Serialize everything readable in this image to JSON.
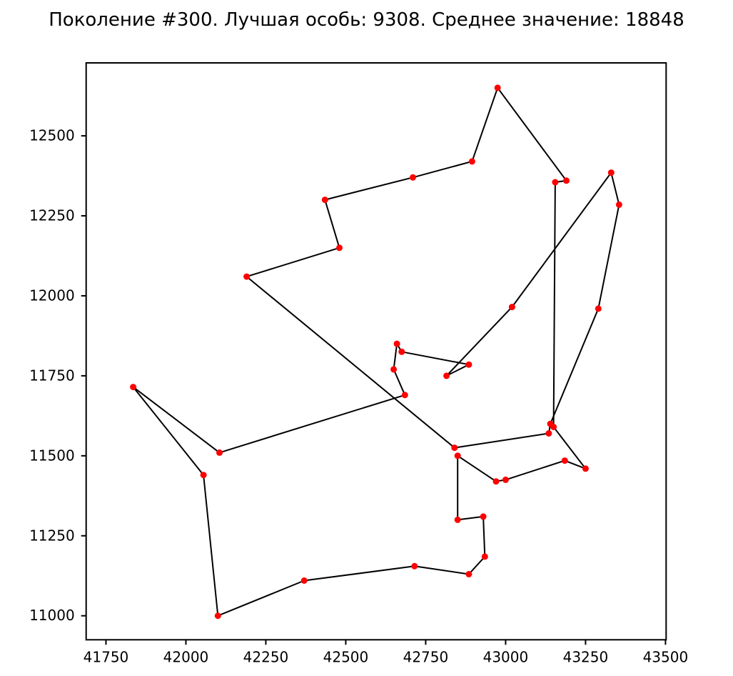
{
  "chart_data": {
    "type": "line",
    "title": "Поколение #300. Лучшая особь: 9308. Среднее значение: 18848",
    "generation": 300,
    "best_individual": 9308,
    "average_value": 18848,
    "xlabel": "",
    "ylabel": "",
    "xticks": [
      41750,
      42000,
      42250,
      42500,
      42750,
      43000,
      43250,
      43500
    ],
    "yticks": [
      11000,
      11250,
      11500,
      11750,
      12000,
      12250,
      12500
    ],
    "xlim": [
      41688,
      43502
    ],
    "ylim": [
      10925,
      12728
    ],
    "grid": false,
    "legend": "none",
    "marker_color": "#ff0000",
    "line_color": "#000000",
    "closed_tour": true,
    "points": [
      [
        42975,
        12650
      ],
      [
        43190,
        12360
      ],
      [
        43155,
        12355
      ],
      [
        43150,
        11590
      ],
      [
        43250,
        11460
      ],
      [
        43185,
        11485
      ],
      [
        43000,
        11425
      ],
      [
        42970,
        11420
      ],
      [
        42850,
        11500
      ],
      [
        42850,
        11300
      ],
      [
        42930,
        11310
      ],
      [
        42935,
        11185
      ],
      [
        42885,
        11130
      ],
      [
        42715,
        11155
      ],
      [
        42370,
        11110
      ],
      [
        42100,
        11000
      ],
      [
        42055,
        11440
      ],
      [
        41835,
        11715
      ],
      [
        42105,
        11510
      ],
      [
        42685,
        11690
      ],
      [
        42650,
        11770
      ],
      [
        42660,
        11850
      ],
      [
        42675,
        11825
      ],
      [
        42885,
        11785
      ],
      [
        42815,
        11750
      ],
      [
        43020,
        11965
      ],
      [
        43330,
        12385
      ],
      [
        43355,
        12285
      ],
      [
        43290,
        11960
      ],
      [
        43140,
        11600
      ],
      [
        43135,
        11570
      ],
      [
        42840,
        11525
      ],
      [
        42190,
        12060
      ],
      [
        42480,
        12150
      ],
      [
        42435,
        12300
      ],
      [
        42710,
        12370
      ],
      [
        42895,
        12420
      ]
    ]
  }
}
